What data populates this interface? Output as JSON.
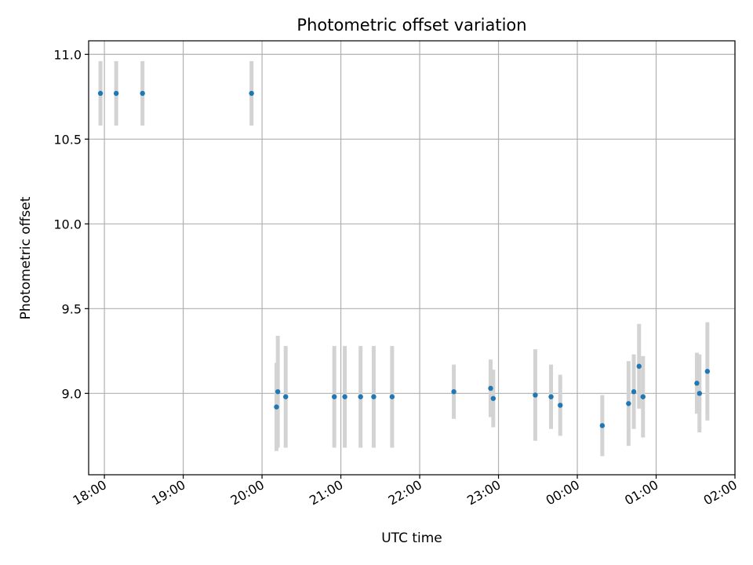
{
  "chart_data": {
    "type": "scatter",
    "title": "Photometric offset variation",
    "xlabel": "UTC time",
    "ylabel": "Photometric offset",
    "x_axis": {
      "kind": "time",
      "range": [
        "17:48",
        "02:00"
      ],
      "tick_times": [
        "18:00",
        "19:00",
        "20:00",
        "21:00",
        "22:00",
        "23:00",
        "00:00",
        "01:00",
        "02:00"
      ],
      "tick_labels": [
        "18:00",
        "19:00",
        "20:00",
        "21:00",
        "22:00",
        "23:00",
        "00:00",
        "01:00",
        "02:00"
      ]
    },
    "ylim": [
      8.52,
      11.08
    ],
    "y_ticks": [
      9.0,
      9.5,
      10.0,
      10.5,
      11.0
    ],
    "y_tick_labels": [
      "9.0",
      "9.5",
      "10.0",
      "10.5",
      "11.0"
    ],
    "grid": true,
    "point_color": "#1f77b4",
    "errorbar_color": "#d3d3d3",
    "points": [
      {
        "time": "17:57",
        "y": 10.77,
        "err": 0.19
      },
      {
        "time": "18:09",
        "y": 10.77,
        "err": 0.19
      },
      {
        "time": "18:29",
        "y": 10.77,
        "err": 0.19
      },
      {
        "time": "19:52",
        "y": 10.77,
        "err": 0.19
      },
      {
        "time": "20:11",
        "y": 8.92,
        "err": 0.26
      },
      {
        "time": "20:12",
        "y": 9.01,
        "err": 0.33
      },
      {
        "time": "20:18",
        "y": 8.98,
        "err": 0.3
      },
      {
        "time": "20:55",
        "y": 8.98,
        "err": 0.3
      },
      {
        "time": "21:03",
        "y": 8.98,
        "err": 0.3
      },
      {
        "time": "21:15",
        "y": 8.98,
        "err": 0.3
      },
      {
        "time": "21:25",
        "y": 8.98,
        "err": 0.3
      },
      {
        "time": "21:39",
        "y": 8.98,
        "err": 0.3
      },
      {
        "time": "22:26",
        "y": 9.01,
        "err": 0.16
      },
      {
        "time": "22:54",
        "y": 9.03,
        "err": 0.17
      },
      {
        "time": "22:56",
        "y": 8.97,
        "err": 0.17
      },
      {
        "time": "23:28",
        "y": 8.99,
        "err": 0.27
      },
      {
        "time": "23:40",
        "y": 8.98,
        "err": 0.19
      },
      {
        "time": "23:47",
        "y": 8.93,
        "err": 0.18
      },
      {
        "time": "00:19",
        "y": 8.81,
        "err": 0.18
      },
      {
        "time": "00:39",
        "y": 8.94,
        "err": 0.25
      },
      {
        "time": "00:43",
        "y": 9.01,
        "err": 0.22
      },
      {
        "time": "00:47",
        "y": 9.16,
        "err": 0.25
      },
      {
        "time": "00:50",
        "y": 8.98,
        "err": 0.24
      },
      {
        "time": "01:31",
        "y": 9.06,
        "err": 0.18
      },
      {
        "time": "01:33",
        "y": 9.0,
        "err": 0.23
      },
      {
        "time": "01:39",
        "y": 9.13,
        "err": 0.29
      }
    ]
  }
}
